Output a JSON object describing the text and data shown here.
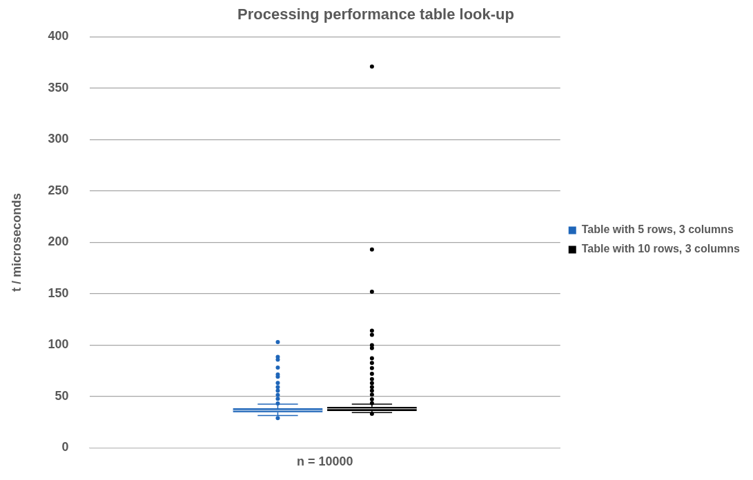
{
  "chart_data": {
    "type": "box",
    "title": "Processing performance table look-up",
    "ylabel": "t / microseconds",
    "categories": [
      "n = 10000"
    ],
    "ylim": [
      0,
      400
    ],
    "yticks": [
      0,
      50,
      100,
      150,
      200,
      250,
      300,
      350,
      400
    ],
    "grid": "y",
    "legend": "right",
    "series": [
      {
        "name": "Table with 5 rows, 3 columns",
        "color": "#1f66b9",
        "boxes": [
          {
            "low": 31.4,
            "q1": 34.6,
            "median": 36.5,
            "q3": 38.6,
            "high": 42.5,
            "outliers": [
              29,
              43.2,
              47.7,
              51.5,
              55.6,
              59.2,
              63.2,
              69.2,
              71.4,
              78.2,
              85.9,
              88.6,
              103
            ]
          }
        ]
      },
      {
        "name": "Table with 10 rows, 3 columns",
        "color": "#000000",
        "boxes": [
          {
            "low": 34.4,
            "q1": 35.9,
            "median": 38,
            "q3": 39.8,
            "high": 42.5,
            "outliers": [
              33.2,
              43.4,
              47.2,
              51.7,
              55.6,
              59.2,
              63.1,
              66.9,
              72.1,
              77.7,
              82.7,
              87.2,
              97,
              100,
              110,
              114,
              152,
              193,
              371
            ]
          }
        ]
      }
    ]
  }
}
